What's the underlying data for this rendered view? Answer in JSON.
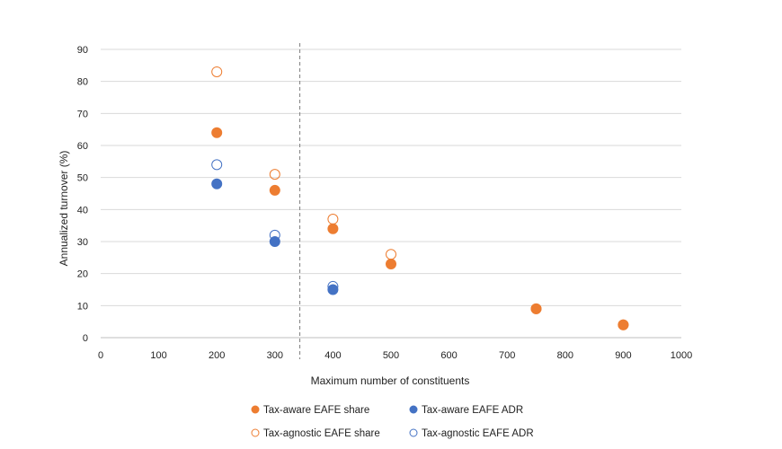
{
  "chart_data": {
    "type": "scatter",
    "title": "",
    "xlabel": "Maximum number of constituents",
    "ylabel": "Annualized turnover (%)",
    "xlim": [
      0,
      1000
    ],
    "ylim": [
      0,
      90
    ],
    "x_ticks": [
      "0",
      "100",
      "200",
      "300",
      "400",
      "500",
      "600",
      "700",
      "800",
      "900",
      "1000"
    ],
    "y_ticks": [
      "0",
      "10",
      "20",
      "30",
      "40",
      "50",
      "60",
      "70",
      "80",
      "90"
    ],
    "grid": "horizontal",
    "vertical_reference_line_x": 343,
    "legend_position": "bottom",
    "series": [
      {
        "name": "Tax-aware EAFE share",
        "marker": "filled",
        "color": "#ED7D31",
        "points": [
          {
            "x": 200,
            "y": 64
          },
          {
            "x": 300,
            "y": 46
          },
          {
            "x": 400,
            "y": 34
          },
          {
            "x": 500,
            "y": 23
          },
          {
            "x": 750,
            "y": 9
          },
          {
            "x": 900,
            "y": 4
          }
        ]
      },
      {
        "name": "Tax-aware EAFE ADR",
        "marker": "filled",
        "color": "#4472C4",
        "points": [
          {
            "x": 200,
            "y": 48
          },
          {
            "x": 300,
            "y": 30
          },
          {
            "x": 400,
            "y": 15
          }
        ]
      },
      {
        "name": "Tax-agnostic EAFE share",
        "marker": "hollow",
        "color": "#ED7D31",
        "points": [
          {
            "x": 200,
            "y": 83
          },
          {
            "x": 300,
            "y": 51
          },
          {
            "x": 400,
            "y": 37
          },
          {
            "x": 500,
            "y": 26
          },
          {
            "x": 750,
            "y": 9
          },
          {
            "x": 900,
            "y": 4
          }
        ]
      },
      {
        "name": "Tax-agnostic EAFE ADR",
        "marker": "hollow",
        "color": "#4472C4",
        "points": [
          {
            "x": 200,
            "y": 54
          },
          {
            "x": 300,
            "y": 32
          },
          {
            "x": 400,
            "y": 16
          }
        ]
      }
    ]
  }
}
